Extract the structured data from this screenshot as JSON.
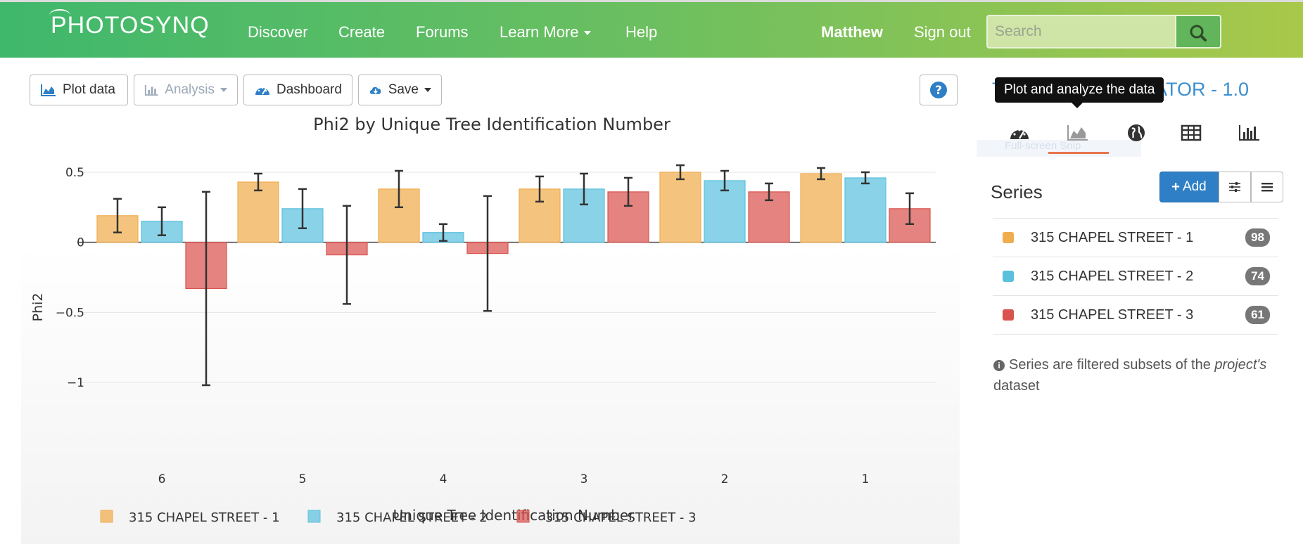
{
  "nav": {
    "logo": "PHOTOSYNQ",
    "links": [
      "Discover",
      "Create",
      "Forums",
      "Learn More",
      "Help"
    ],
    "user": "Matthew",
    "signout": "Sign out",
    "search_placeholder": "Search"
  },
  "toolbar": {
    "plot_label": "Plot data",
    "analysis_label": "Analysis",
    "dashboard_label": "Dashboard",
    "save_label": "Save"
  },
  "project_title_visible": "ULATOR - 1.0",
  "project_title_prefix": "T",
  "tooltip": "Plot and analyze the data",
  "ghost_text": "Full-screen Snip",
  "tabs": [
    "dashboard-icon",
    "area-chart-icon",
    "globe-icon",
    "table-icon",
    "bar-chart-icon"
  ],
  "series_panel": {
    "heading": "Series",
    "add_label": "Add",
    "items": [
      {
        "label": "315 CHAPEL STREET - 1",
        "count": "98",
        "color": "#f0ad4e"
      },
      {
        "label": "315 CHAPEL STREET - 2",
        "count": "74",
        "color": "#5bc0de"
      },
      {
        "label": "315 CHAPEL STREET - 3",
        "count": "61",
        "color": "#d9534f"
      }
    ],
    "note_part1": "Series are filtered subsets of the",
    "note_italic": "project's",
    "note_part2": "dataset"
  },
  "chart_data": {
    "type": "bar",
    "title": "Phi2 by Unique Tree Identification Number",
    "xlabel": "Unique Tree Identification Number",
    "ylabel": "Phi2",
    "categories": [
      "6",
      "5",
      "4",
      "3",
      "2",
      "1"
    ],
    "ylim": [
      -1,
      0.5
    ],
    "yticks": [
      0.5,
      0,
      -0.5,
      -1
    ],
    "ytick_labels": [
      "0.5",
      "0",
      "−0.5",
      "−1"
    ],
    "grid": true,
    "legend_position": "bottom",
    "series": [
      {
        "name": "315 CHAPEL STREET - 1",
        "color": "#f0ad4e",
        "values": [
          0.19,
          0.43,
          0.38,
          0.38,
          0.5,
          0.49
        ],
        "error": [
          0.12,
          0.06,
          0.13,
          0.09,
          0.05,
          0.04
        ]
      },
      {
        "name": "315 CHAPEL STREET - 2",
        "color": "#5bc0de",
        "values": [
          0.15,
          0.24,
          0.07,
          0.38,
          0.44,
          0.46
        ],
        "error": [
          0.1,
          0.14,
          0.06,
          0.11,
          0.07,
          0.04
        ]
      },
      {
        "name": "315 CHAPEL STREET - 3",
        "color": "#d9534f",
        "values": [
          -0.33,
          -0.09,
          -0.08,
          0.36,
          0.36,
          0.24
        ],
        "error": [
          0.69,
          0.35,
          0.41,
          0.1,
          0.06,
          0.11
        ]
      }
    ]
  }
}
